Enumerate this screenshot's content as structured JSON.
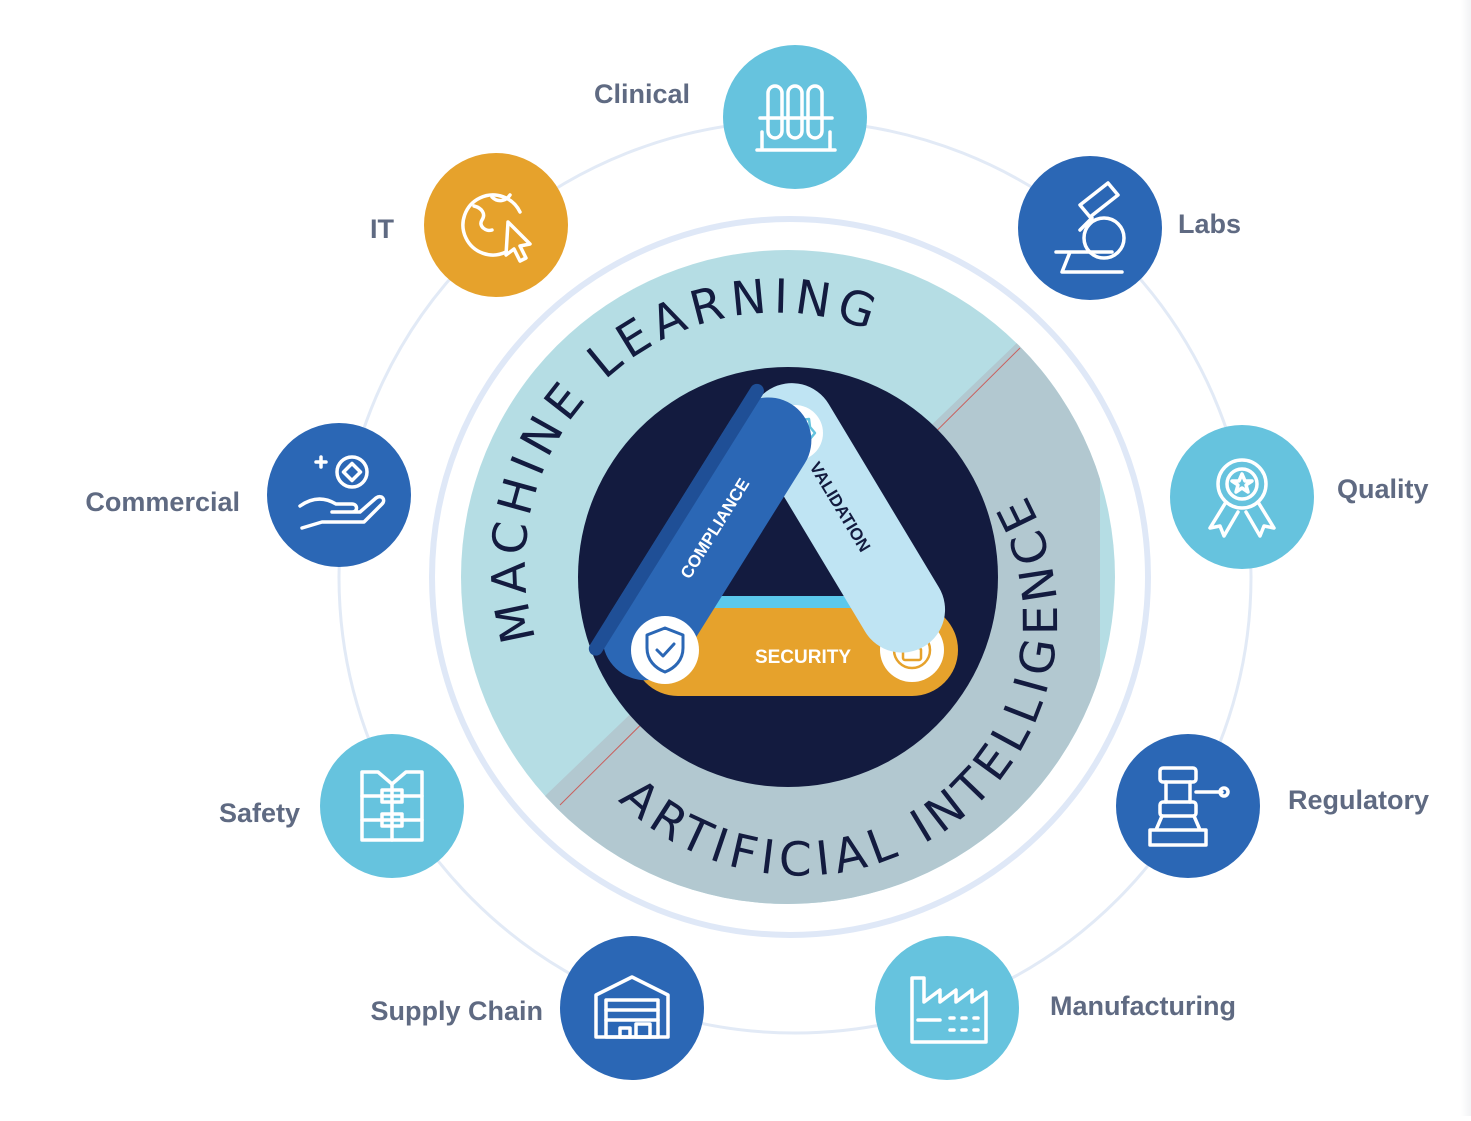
{
  "diagram": {
    "ring": {
      "outer_top_text": "MACHINE LEARNING",
      "outer_bottom_text": "ARTIFICIAL INTELLIGENCE"
    },
    "triangle": {
      "compliance_label": "COMPLIANCE",
      "validation_label": "VALIDATION",
      "security_label": "SECURITY"
    },
    "nodes": [
      {
        "id": "clinical",
        "label": "Clinical",
        "color": "#66c3de",
        "icon": "test-tubes-icon"
      },
      {
        "id": "labs",
        "label": "Labs",
        "color": "#2b67b5",
        "icon": "microscope-icon"
      },
      {
        "id": "quality",
        "label": "Quality",
        "color": "#66c3de",
        "icon": "award-ribbon-icon"
      },
      {
        "id": "regulatory",
        "label": "Regulatory",
        "color": "#2b67b5",
        "icon": "gavel-icon"
      },
      {
        "id": "manufacturing",
        "label": "Manufacturing",
        "color": "#66c3de",
        "icon": "factory-icon"
      },
      {
        "id": "supply_chain",
        "label": "Supply Chain",
        "color": "#2b67b5",
        "icon": "warehouse-icon"
      },
      {
        "id": "safety",
        "label": "Safety",
        "color": "#66c3de",
        "icon": "safety-vest-icon"
      },
      {
        "id": "commercial",
        "label": "Commercial",
        "color": "#2b67b5",
        "icon": "hand-coin-icon"
      },
      {
        "id": "it",
        "label": "IT",
        "color": "#e6a22c",
        "icon": "globe-cursor-icon"
      }
    ],
    "colors": {
      "light_blue": "#66c3de",
      "mid_blue": "#2b67b5",
      "orange": "#e6a22c",
      "navy": "#131b3f",
      "ring_ml": "#b5dde4",
      "ring_ai": "#b2c8d0",
      "orbit": "#e2eaf6"
    }
  }
}
